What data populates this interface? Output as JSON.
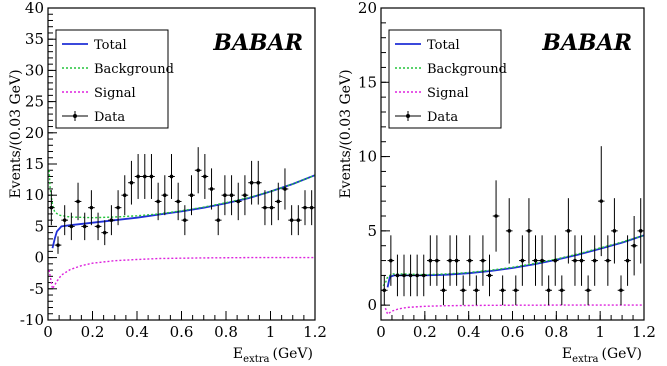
{
  "chart_data": [
    {
      "type": "line",
      "panel": "left",
      "brand": "BABAR",
      "title": "",
      "xlabel": "E",
      "xlabel_sub": "extra",
      "xlabel_unit": "(GeV)",
      "ylabel": "Events/(0.03 GeV)",
      "xlim": [
        0,
        1.2
      ],
      "ylim": [
        -10,
        40
      ],
      "xticks": [
        0,
        0.2,
        0.4,
        0.6,
        0.8,
        1,
        1.2
      ],
      "xtick_labels": [
        "0",
        "0.2",
        "0.4",
        "0.6",
        "0.8",
        "1",
        "1.2"
      ],
      "yticks": [
        -10,
        -5,
        0,
        5,
        10,
        15,
        20,
        25,
        30,
        35,
        40
      ],
      "ytick_labels": [
        "-10",
        "-5",
        "0",
        "5",
        "10",
        "15",
        "20",
        "25",
        "30",
        "35",
        "40"
      ],
      "grid": false,
      "legend_position": "top-left",
      "legend": [
        {
          "label": "Total",
          "style": "solid",
          "color": "#1f2fd6"
        },
        {
          "label": "Background",
          "style": "dotted",
          "color": "#22c33a"
        },
        {
          "label": "Signal",
          "style": "dotted",
          "color": "#dd22dd"
        },
        {
          "label": "Data",
          "style": "points",
          "color": "#000000"
        }
      ],
      "series": [
        {
          "name": "Total",
          "x": [
            0.02,
            0.03,
            0.04,
            0.06,
            0.1,
            0.2,
            0.3,
            0.4,
            0.5,
            0.6,
            0.7,
            0.8,
            0.9,
            1.0,
            1.1,
            1.2
          ],
          "y": [
            1.5,
            3.0,
            4.2,
            5.0,
            5.2,
            5.6,
            6.0,
            6.4,
            6.9,
            7.4,
            8.0,
            8.7,
            9.5,
            10.6,
            11.8,
            13.2
          ]
        },
        {
          "name": "Background",
          "x": [
            0.005,
            0.01,
            0.02,
            0.03,
            0.05,
            0.1,
            0.2,
            0.3,
            0.4,
            0.5,
            0.6,
            0.7,
            0.8,
            0.9,
            1.0,
            1.1,
            1.2
          ],
          "y": [
            14,
            11,
            8.5,
            7.3,
            6.8,
            6.5,
            6.4,
            6.5,
            6.7,
            7.0,
            7.5,
            8.1,
            8.8,
            9.6,
            10.6,
            11.8,
            13.2
          ]
        },
        {
          "name": "Signal",
          "x": [
            0.005,
            0.02,
            0.04,
            0.06,
            0.1,
            0.15,
            0.2,
            0.3,
            0.4,
            0.5,
            0.7,
            0.9,
            1.2
          ],
          "y": [
            -2.0,
            -5.0,
            -3.8,
            -2.8,
            -1.9,
            -1.3,
            -0.9,
            -0.5,
            -0.3,
            -0.15,
            -0.05,
            0,
            0
          ]
        },
        {
          "name": "Data",
          "x": [
            0.015,
            0.045,
            0.075,
            0.105,
            0.135,
            0.165,
            0.195,
            0.225,
            0.255,
            0.285,
            0.315,
            0.345,
            0.375,
            0.405,
            0.435,
            0.465,
            0.495,
            0.525,
            0.555,
            0.585,
            0.615,
            0.645,
            0.675,
            0.705,
            0.735,
            0.765,
            0.795,
            0.825,
            0.855,
            0.885,
            0.915,
            0.945,
            0.975,
            1.005,
            1.035,
            1.065,
            1.095,
            1.125,
            1.155,
            1.185
          ],
          "y": [
            8,
            2,
            6,
            5,
            9,
            5,
            8,
            5,
            4,
            6,
            8,
            10,
            12,
            13,
            13,
            13,
            9,
            10,
            13,
            9,
            6,
            10,
            14,
            13,
            11,
            6,
            10,
            10,
            9,
            10,
            12,
            12,
            8,
            8,
            9,
            11,
            6,
            6,
            8,
            8
          ],
          "err": [
            2.8,
            1.4,
            2.4,
            2.2,
            3.0,
            2.2,
            2.8,
            2.2,
            2.0,
            2.4,
            2.8,
            3.2,
            3.5,
            3.6,
            3.6,
            3.6,
            3.0,
            3.2,
            3.6,
            3.0,
            2.4,
            3.2,
            3.7,
            3.6,
            3.3,
            2.4,
            3.2,
            3.2,
            3.0,
            3.2,
            3.5,
            3.5,
            2.8,
            2.8,
            3.0,
            3.3,
            2.4,
            2.4,
            2.8,
            2.8
          ]
        }
      ]
    },
    {
      "type": "line",
      "panel": "right",
      "brand": "BABAR",
      "title": "",
      "xlabel": "E",
      "xlabel_sub": "extra",
      "xlabel_unit": "(GeV)",
      "ylabel": "Events/(0.03 GeV)",
      "xlim": [
        0,
        1.2
      ],
      "ylim": [
        -1,
        20
      ],
      "xticks": [
        0,
        0.2,
        0.4,
        0.6,
        0.8,
        1,
        1.2
      ],
      "xtick_labels": [
        "0",
        "0.2",
        "0.4",
        "0.6",
        "0.8",
        "1",
        "1.2"
      ],
      "yticks": [
        0,
        5,
        10,
        15,
        20
      ],
      "ytick_labels": [
        "0",
        "5",
        "10",
        "15",
        "20"
      ],
      "grid": false,
      "legend_position": "top-left",
      "legend": [
        {
          "label": "Total",
          "style": "solid",
          "color": "#1f2fd6"
        },
        {
          "label": "Background",
          "style": "dotted",
          "color": "#22c33a"
        },
        {
          "label": "Signal",
          "style": "dotted",
          "color": "#dd22dd"
        },
        {
          "label": "Data",
          "style": "points",
          "color": "#000000"
        }
      ],
      "series": [
        {
          "name": "Total",
          "x": [
            0.03,
            0.04,
            0.06,
            0.1,
            0.2,
            0.3,
            0.4,
            0.5,
            0.6,
            0.7,
            0.8,
            0.9,
            1.0,
            1.1,
            1.2
          ],
          "y": [
            1.2,
            1.9,
            2.0,
            2.0,
            2.0,
            2.05,
            2.15,
            2.3,
            2.5,
            2.75,
            3.05,
            3.4,
            3.8,
            4.2,
            4.7
          ]
        },
        {
          "name": "Background",
          "x": [
            0.01,
            0.02,
            0.03,
            0.05,
            0.1,
            0.2,
            0.3,
            0.4,
            0.5,
            0.6,
            0.7,
            0.8,
            0.9,
            1.0,
            1.1,
            1.2
          ],
          "y": [
            1.3,
            1.5,
            1.9,
            2.1,
            2.1,
            2.05,
            2.1,
            2.2,
            2.35,
            2.55,
            2.8,
            3.1,
            3.45,
            3.85,
            4.25,
            4.7
          ]
        },
        {
          "name": "Signal",
          "x": [
            0.02,
            0.03,
            0.05,
            0.08,
            0.12,
            0.2,
            0.3,
            0.5,
            0.8,
            1.2
          ],
          "y": [
            -0.2,
            -0.6,
            -0.4,
            -0.25,
            -0.15,
            -0.08,
            -0.04,
            -0.01,
            0,
            0
          ]
        },
        {
          "name": "Data",
          "x": [
            0.015,
            0.045,
            0.075,
            0.105,
            0.135,
            0.165,
            0.195,
            0.225,
            0.255,
            0.285,
            0.315,
            0.345,
            0.375,
            0.405,
            0.435,
            0.465,
            0.495,
            0.525,
            0.555,
            0.585,
            0.615,
            0.645,
            0.675,
            0.705,
            0.735,
            0.765,
            0.795,
            0.825,
            0.855,
            0.885,
            0.915,
            0.945,
            0.975,
            1.005,
            1.035,
            1.065,
            1.095,
            1.125,
            1.155,
            1.185
          ],
          "y": [
            1,
            3,
            2,
            2,
            2,
            2,
            2,
            3,
            3,
            1,
            3,
            3,
            1,
            3,
            1,
            3,
            2,
            6,
            1,
            5,
            1,
            3,
            5,
            3,
            3,
            1,
            3,
            1,
            5,
            3,
            3,
            1,
            3,
            7,
            3,
            5,
            1,
            3,
            4,
            5
          ],
          "err": [
            1.0,
            1.7,
            1.4,
            1.4,
            1.4,
            1.4,
            1.4,
            1.7,
            1.7,
            1.0,
            1.7,
            1.7,
            1.0,
            1.7,
            1.0,
            1.7,
            1.4,
            2.4,
            1.0,
            2.2,
            1.0,
            1.7,
            2.2,
            1.7,
            1.7,
            1.0,
            1.7,
            1.0,
            2.2,
            1.7,
            1.7,
            1.0,
            1.7,
            3.7,
            1.7,
            2.2,
            1.0,
            1.7,
            2.0,
            2.2
          ]
        }
      ]
    }
  ]
}
